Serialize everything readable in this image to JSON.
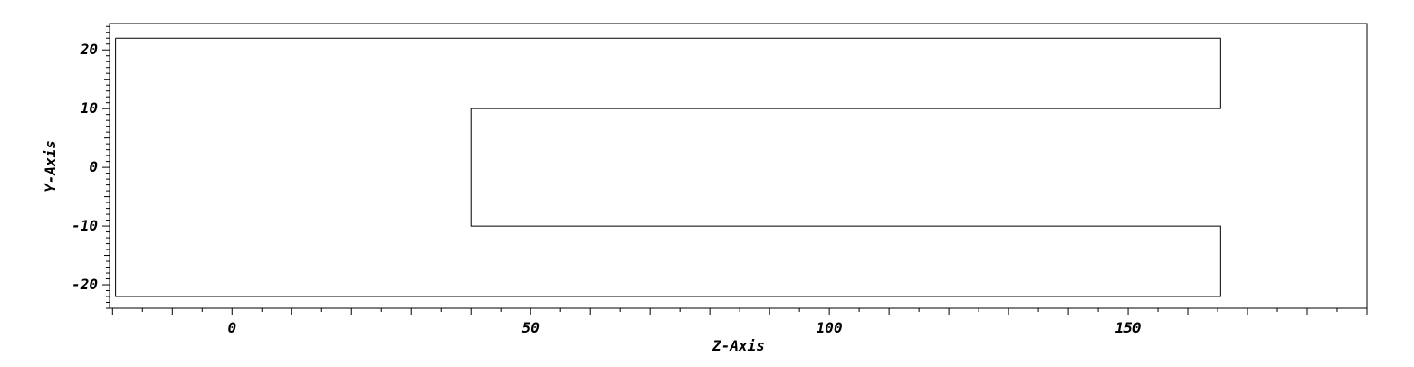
{
  "chart_data": {
    "type": "line",
    "title": "",
    "xlabel": "Z-Axis",
    "ylabel": "Y-Axis",
    "xlim": [
      -20.5,
      190
    ],
    "ylim": [
      -24,
      24.5
    ],
    "x_ticks": [
      0,
      50,
      100,
      150
    ],
    "y_ticks": [
      -20,
      -10,
      0,
      10,
      20
    ],
    "x_minor_step": 5,
    "y_minor_step": 1,
    "grid": false,
    "series": [
      {
        "x": [
          -19.5,
          165.5,
          165.5,
          40,
          40,
          165.5,
          165.5,
          -19.5,
          -19.5
        ],
        "y": [
          22,
          22,
          10,
          10,
          -10,
          -10,
          -22,
          -22,
          22
        ]
      }
    ]
  }
}
